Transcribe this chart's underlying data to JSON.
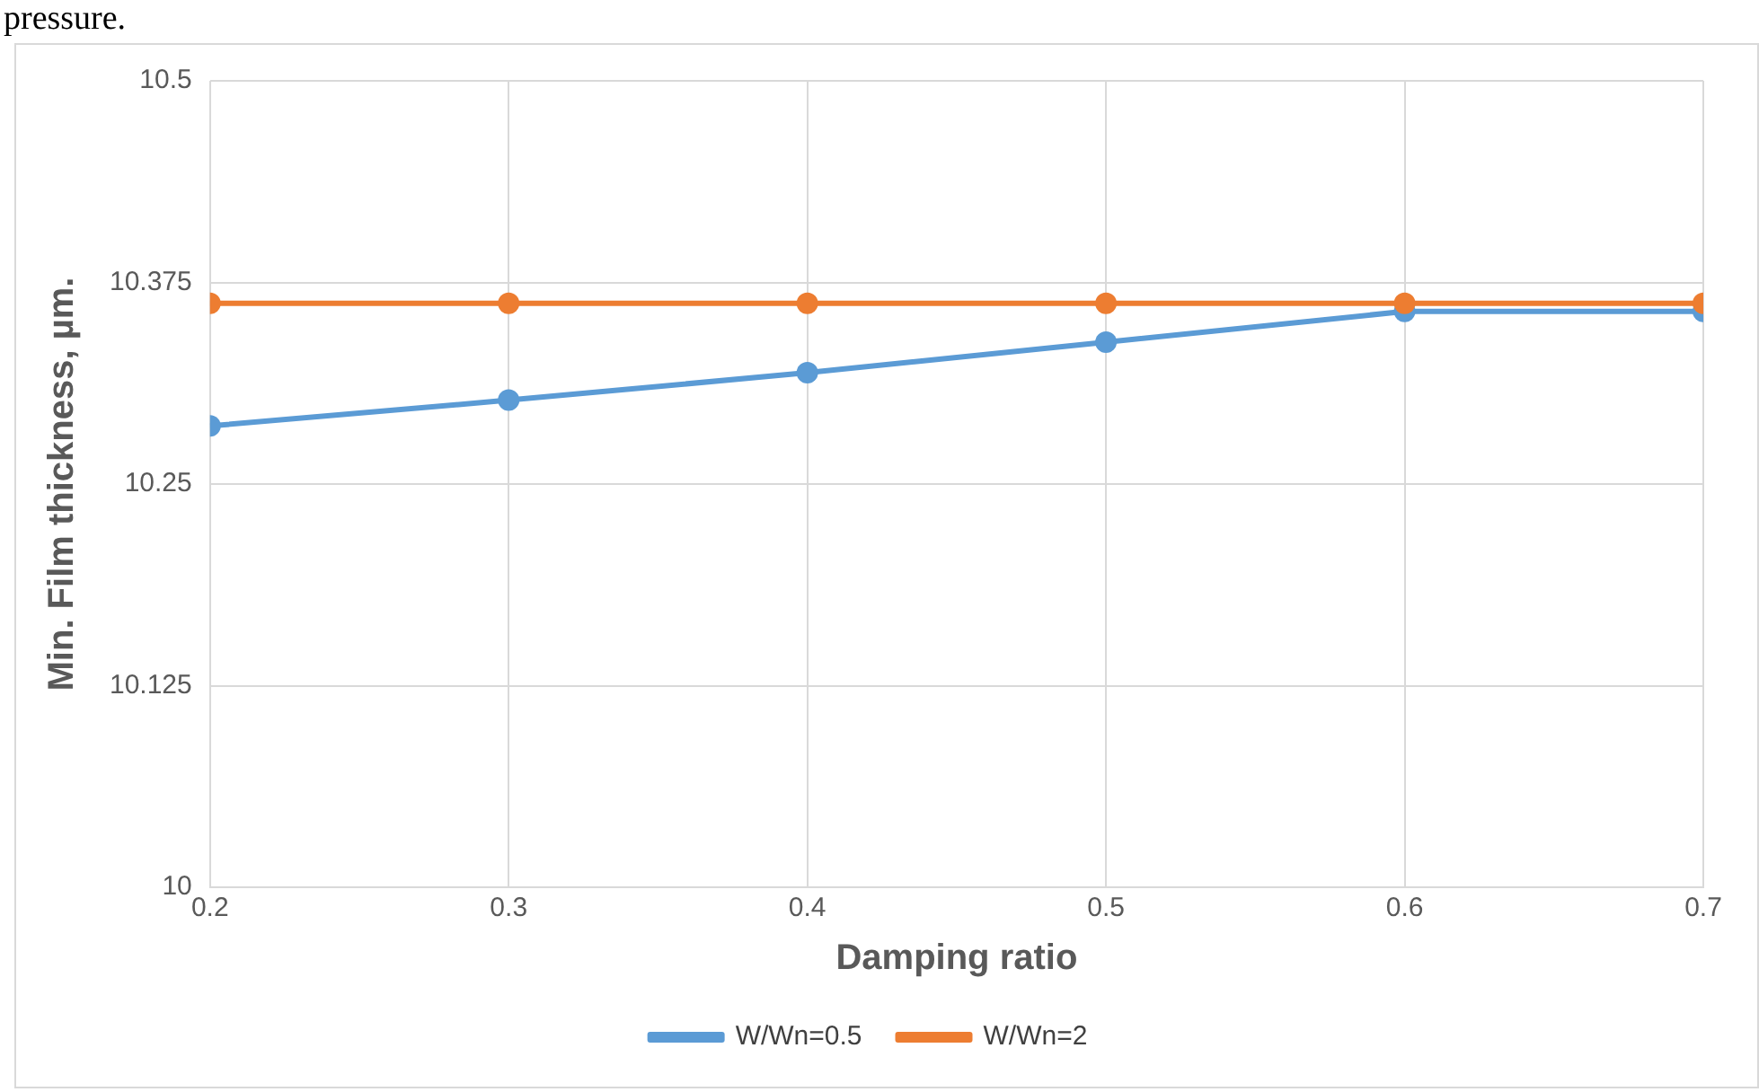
{
  "chart_data": {
    "type": "line",
    "xlabel": "Damping ratio",
    "ylabel": "Min. Film thickness, µm.",
    "x": [
      0.2,
      0.3,
      0.4,
      0.5,
      0.6,
      0.7
    ],
    "series": [
      {
        "name": "W/Wn=0.5",
        "color": "#5b9bd5",
        "values": [
          10.286,
          10.302,
          10.319,
          10.338,
          10.357,
          10.357
        ]
      },
      {
        "name": "W/Wn=2",
        "color": "#ed7d31",
        "values": [
          10.362,
          10.362,
          10.362,
          10.362,
          10.362,
          10.362
        ]
      }
    ],
    "xlim": [
      0.2,
      0.7
    ],
    "xticks": [
      0.2,
      0.3,
      0.4,
      0.5,
      0.6,
      0.7
    ],
    "ylim": [
      10,
      10.5
    ],
    "yticks": [
      10,
      10.125,
      10.25,
      10.375,
      10.5
    ],
    "grid": true,
    "legend": "bottom",
    "marker": "circle",
    "line_style": "solid",
    "annotations": [
      "pressure."
    ]
  }
}
